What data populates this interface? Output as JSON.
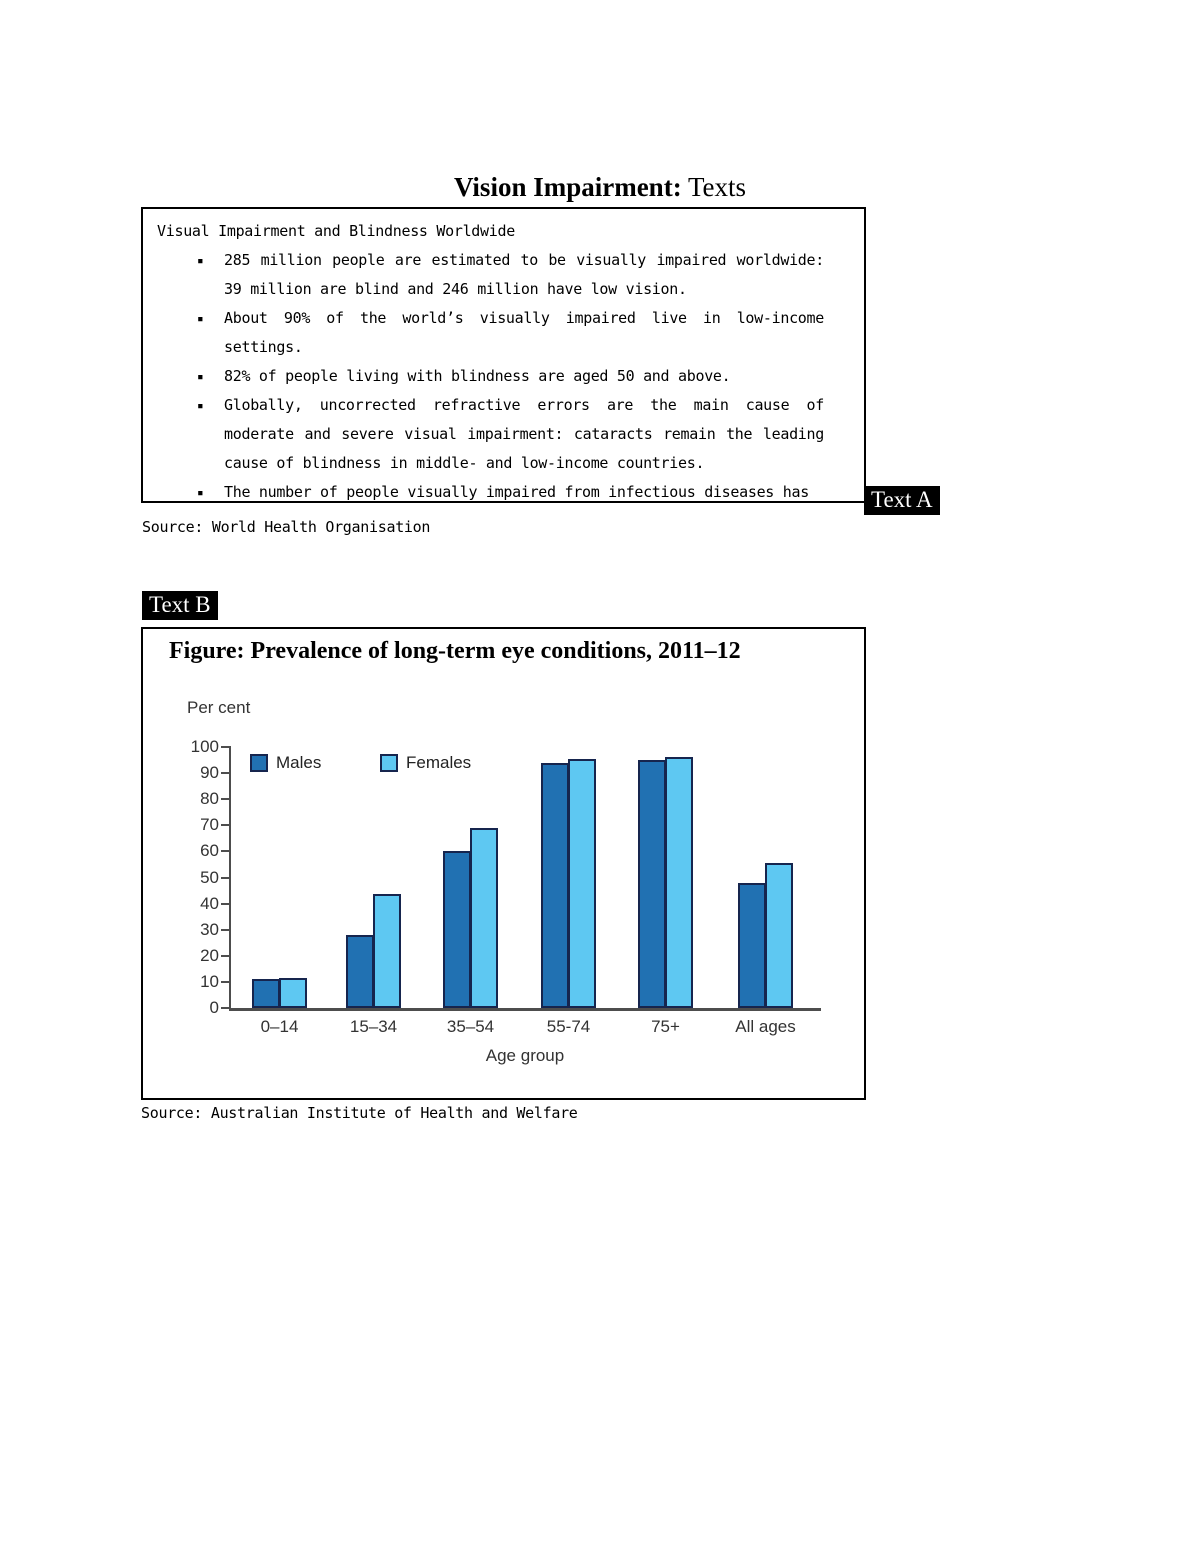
{
  "page": {
    "title_bold": "Vision Impairment:",
    "title_suffix": " Texts"
  },
  "text_a": {
    "tag": "Text A",
    "heading": "Visual Impairment and Blindness Worldwide",
    "bullet_char": "▪",
    "bullets": [
      "285 million people are estimated to be visually impaired worldwide: 39 million are blind and 246 million have low vision.",
      "About 90% of the world’s visually impaired live in low-income settings.",
      "82% of people living with blindness are aged 50 and above.",
      "Globally, uncorrected refractive errors are the main cause of moderate and severe visual impairment: cataracts remain the leading cause of blindness in middle- and low-income countries.",
      "The number of people visually impaired from infectious diseases has"
    ],
    "source": "Source: World Health Organisation"
  },
  "text_b": {
    "tag": "Text B",
    "source": "Source: Australian Institute of Health and Welfare"
  },
  "chart_data": {
    "type": "bar",
    "title": "Figure: Prevalence of long-term eye conditions, 2011–12",
    "ylabel": "Per cent",
    "xlabel": "Age group",
    "categories": [
      "0–14",
      "15–34",
      "35–54",
      "55-74",
      "75+",
      "All ages"
    ],
    "series": [
      {
        "name": "Males",
        "color": "#2171b2",
        "values": [
          11,
          28,
          60,
          94,
          95,
          48
        ]
      },
      {
        "name": "Females",
        "color": "#5ec8f2",
        "values": [
          11.5,
          43.5,
          69,
          95.5,
          96,
          55.5
        ]
      }
    ],
    "ylim": [
      0,
      100
    ],
    "yticks": [
      0,
      10,
      20,
      30,
      40,
      50,
      60,
      70,
      80,
      90,
      100
    ],
    "grid": false,
    "legend_position": "top-left"
  }
}
